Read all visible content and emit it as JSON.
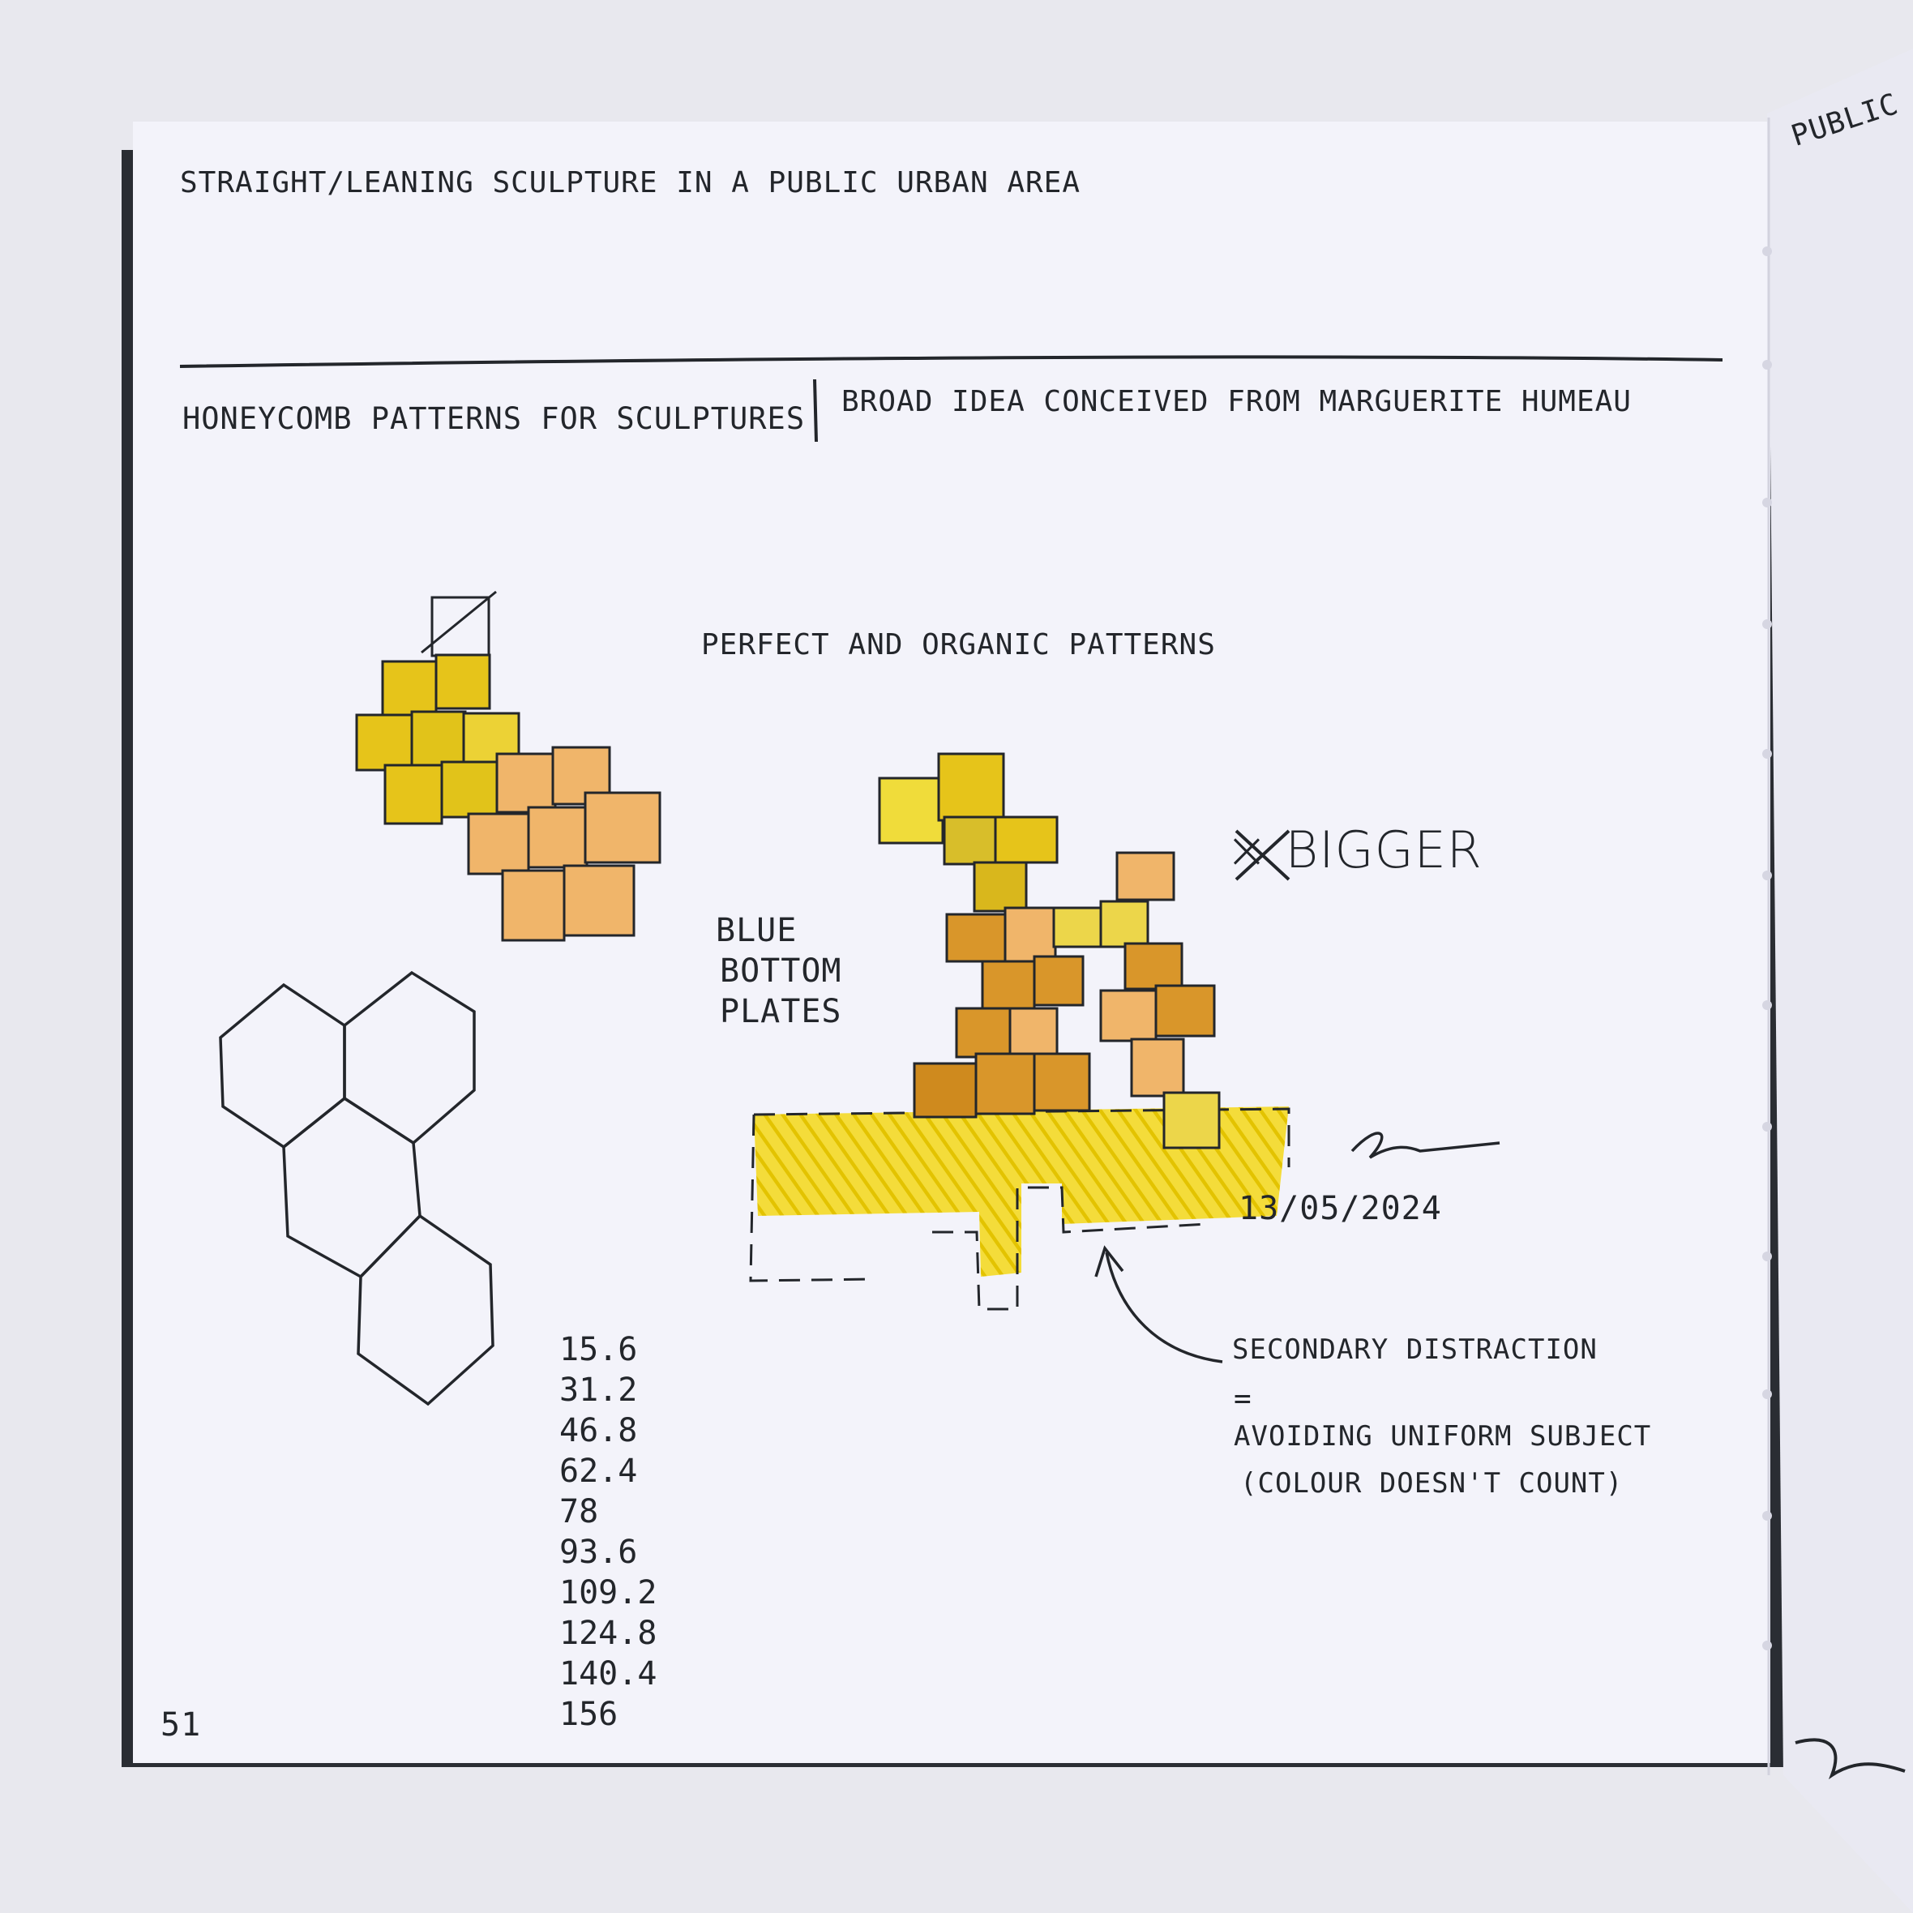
{
  "sketch": {
    "colors": {
      "page": "#f3f3fa",
      "yellow": "#e6c41a",
      "light_yellow": "#ecd64a",
      "peach": "#f0b56a",
      "orange": "#d9962a",
      "ink": "#23262b"
    },
    "header": {
      "top_line": "STRAIGHT/LEANING SCULPTURE IN A PUBLIC URBAN AREA",
      "left_title": "HONEYCOMB PATTERNS FOR SCULPTURES",
      "right_title": "BROAD IDEA CONCEIVED FROM MARGUERITE HUMEAU"
    },
    "notes": {
      "patterns": "PERFECT AND ORGANIC PATTERNS",
      "blue_line1": "BLUE",
      "blue_line2": "BOTTOM",
      "blue_line3": "PLATES",
      "bigger": "× BIGGER",
      "date": "13/05/2024",
      "distraction_line1": "SECONDARY DISTRACTION",
      "distraction_eq": "=",
      "distraction_line2": "AVOIDING UNIFORM SUBJECT",
      "distraction_line3": "(COLOUR DOESN'T COUNT)"
    },
    "numbers": [
      "15.6",
      "31.2",
      "46.8",
      "62.4",
      "78",
      "93.6",
      "109.2",
      "124.8",
      "140.4",
      "156"
    ],
    "page_number": "51",
    "side_page_text": "PUBLIC"
  }
}
